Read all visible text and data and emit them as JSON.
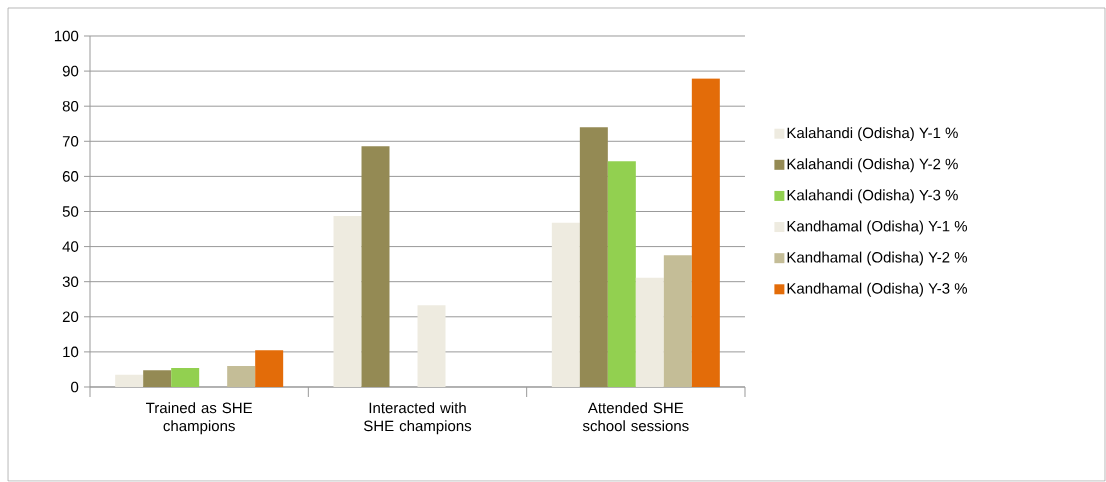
{
  "chart_data": {
    "type": "bar",
    "categories": [
      "Trained as SHE champions",
      "Interacted with SHE champions",
      "Attended SHE school sessions"
    ],
    "series": [
      {
        "name": "Kalahandi (Odisha) Y-1 %",
        "color": "#eeebe0",
        "values": [
          3.5,
          48.7,
          46.8
        ]
      },
      {
        "name": "Kalahandi (Odisha) Y-2 %",
        "color": "#948a54",
        "values": [
          4.8,
          68.6,
          74.0
        ]
      },
      {
        "name": "Kalahandi (Odisha) Y-3 %",
        "color": "#92d050",
        "values": [
          5.4,
          null,
          64.3
        ]
      },
      {
        "name": "Kandhamal (Odisha) Y-1 %",
        "color": "#eeebe0",
        "values": [
          null,
          23.3,
          31.1
        ]
      },
      {
        "name": "Kandhamal (Odisha) Y-2 %",
        "color": "#c4bd97",
        "values": [
          6.0,
          null,
          37.5
        ]
      },
      {
        "name": "Kandhamal (Odisha) Y-3 %",
        "color": "#e36c09",
        "values": [
          10.5,
          null,
          87.9
        ]
      }
    ],
    "ylim": [
      0,
      100
    ],
    "yticks": [
      0,
      10,
      20,
      30,
      40,
      50,
      60,
      70,
      80,
      90,
      100
    ],
    "grid": "y",
    "legend": "right"
  }
}
